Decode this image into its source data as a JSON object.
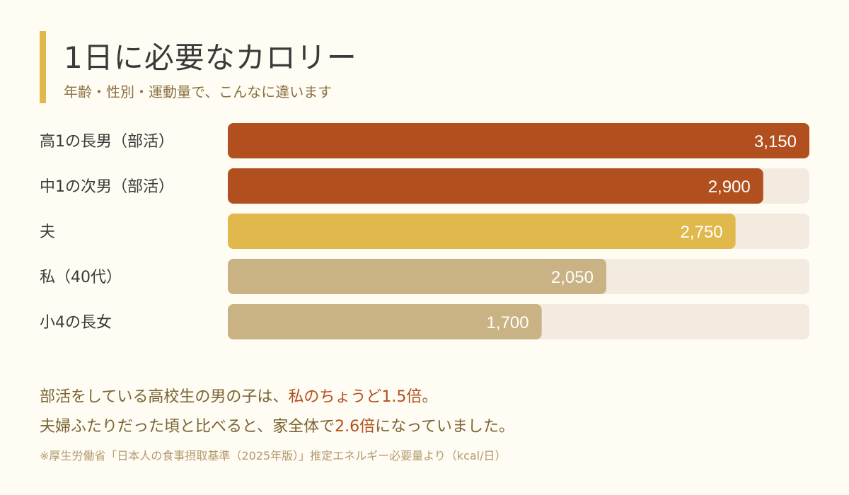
{
  "header": {
    "title": "1日に必要なカロリー",
    "subtitle": "年齢・性別・運動量で、こんなに違います"
  },
  "chart_data": {
    "type": "bar",
    "orientation": "horizontal",
    "title": "1日に必要なカロリー",
    "subtitle": "年齢・性別・運動量で、こんなに違います",
    "categories": [
      "高1の長男（部活）",
      "中1の次男（部活）",
      "夫",
      "私（40代）",
      "小4の長女"
    ],
    "values": [
      3150,
      2900,
      2750,
      2050,
      1700
    ],
    "value_labels": [
      "3,150",
      "2,900",
      "2,750",
      "2,050",
      "1,700"
    ],
    "xlim": [
      0,
      3150
    ],
    "grid": false,
    "legend": "none",
    "bar_colors": [
      "#B24F1E",
      "#B24F1E",
      "#E0B84C",
      "#C9B283",
      "#C9B283"
    ],
    "track_color": "#F3EBE0"
  },
  "notes": {
    "line1": {
      "before": "部活をしている高校生の男の子は、",
      "highlight": "私のちょうど1.5倍",
      "after": "。"
    },
    "line2": {
      "before": "夫婦ふたりだった頃と比べると、家全体で",
      "highlight": "2.6倍",
      "after": "になっていました。"
    },
    "source": "※厚生労働省「日本人の食事摂取基準（2025年版）」推定エネルギー必要量より（kcal/日）"
  }
}
